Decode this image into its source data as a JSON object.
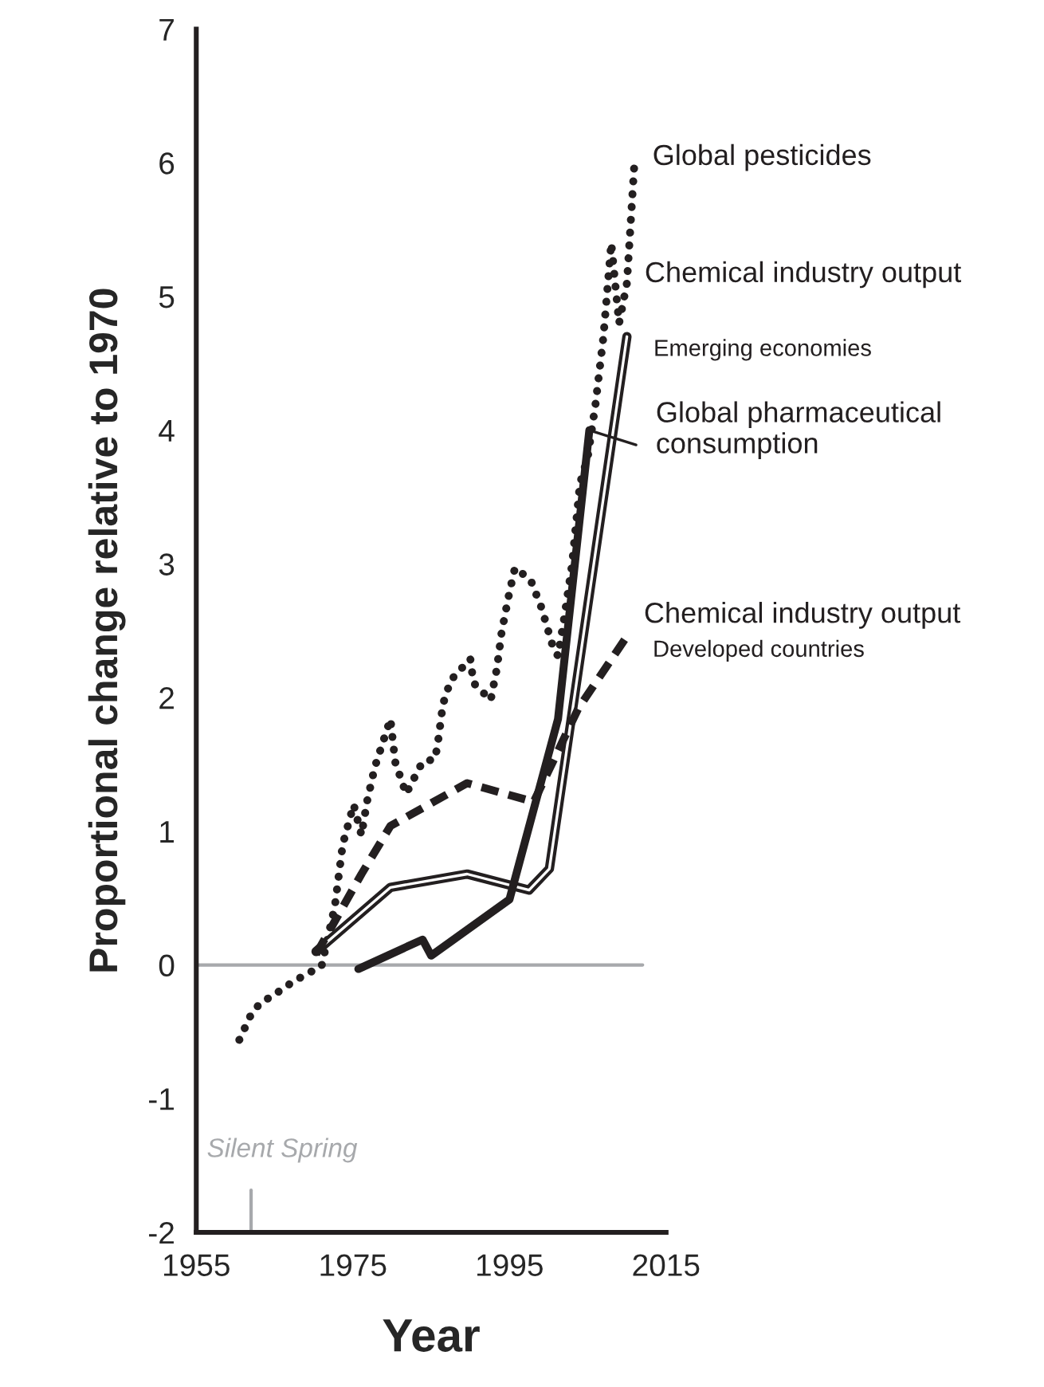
{
  "chart_data": {
    "type": "line",
    "xlabel": "Year",
    "ylabel": "Proportional change relative to 1970",
    "xlim": [
      1955,
      2015
    ],
    "xticks": [
      1955,
      1975,
      1995,
      2015
    ],
    "ylim": [
      -2,
      7
    ],
    "yticks": [
      -2,
      -1,
      0,
      1,
      2,
      3,
      4,
      5,
      6,
      7
    ],
    "grid": false,
    "legend": "right",
    "series": [
      {
        "name": "Global pesticides",
        "color": "#231f20",
        "line_style": "dotted",
        "x": [
          1960.5,
          1962,
          1963.1,
          1965,
          1967,
          1969,
          1971,
          1972.7,
          1973.7,
          1975.1,
          1976.1,
          1976.8,
          1977.8,
          1979.8,
          1980.4,
          1981.8,
          1983.9,
          1985.5,
          1985.9,
          1986.5,
          1987.5,
          1990,
          1990.4,
          1992.6,
          1993.4,
          1994,
          1995,
          1995.7,
          1997.7,
          1999.1,
          2000.5,
          2001.2,
          2002,
          2003,
          2004,
          2005,
          2006,
          2007,
          2008,
          2009,
          2010,
          2011
        ],
        "values": [
          -0.56,
          -0.37,
          -0.29,
          -0.22,
          -0.14,
          -0.07,
          -0.01,
          0.44,
          0.9,
          1.2,
          0.97,
          1.22,
          1.48,
          1.84,
          1.52,
          1.28,
          1.52,
          1.54,
          1.68,
          1.95,
          2.13,
          2.29,
          2.11,
          1.98,
          2.22,
          2.49,
          2.79,
          2.97,
          2.88,
          2.67,
          2.39,
          2.31,
          2.6,
          3.0,
          3.6,
          3.8,
          4.2,
          4.7,
          5.4,
          4.8,
          5.1,
          6.04
        ]
      },
      {
        "name": "Chemical industry output",
        "color": "#231f20",
        "x": [
          1970.3,
          1979.8,
          1989.6,
          1997.5,
          2000.1,
          2010
        ],
        "values": [
          0.1,
          0.58,
          0.68,
          0.56,
          0.72,
          4.7
        ]
      },
      {
        "name": "Global pharmaceutical\nconsumption",
        "color": "#231f20",
        "line_style": "solid",
        "x": [
          1975.7,
          1983.9,
          1985,
          1995,
          2001.2,
          2005.2
        ],
        "values": [
          -0.03,
          0.19,
          0.07,
          0.49,
          1.84,
          4.0
        ]
      },
      {
        "name": "Chemical industry output",
        "color": "#231f20",
        "line_style": "dashed",
        "x": [
          1970.3,
          1976.1,
          1979.8,
          1989.6,
          1998.1,
          2003.8,
          2009.9
        ],
        "values": [
          0.08,
          0.68,
          1.04,
          1.36,
          1.22,
          1.92,
          2.45
        ]
      }
    ],
    "annotations": [
      {
        "text": "Emerging economies",
        "x": 2010,
        "y": 4.7
      },
      {
        "text": "Developed countries",
        "x": 2009.9,
        "y": 2.45
      }
    ],
    "ref_lines": [
      {
        "axis": "y",
        "value": 0,
        "color": "#a7a9ac"
      },
      {
        "axis": "x",
        "value": 1962,
        "label": "Silent Spring",
        "color": "#a7a9ac"
      }
    ]
  }
}
